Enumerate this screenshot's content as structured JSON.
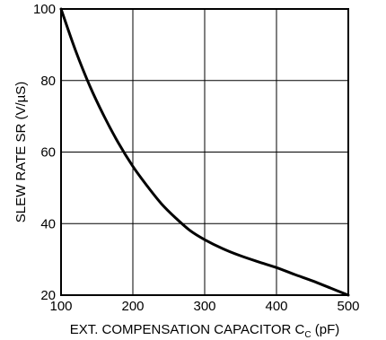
{
  "chart_data": {
    "type": "line",
    "title": "",
    "xlabel": "EXT. COMPENSATION CAPACITOR C",
    "xlabel_subscript": "C",
    "xlabel_unit": " (pF)",
    "ylabel": "SLEW RATE SR (V/µS)",
    "xlim": [
      100,
      500
    ],
    "ylim": [
      20,
      100
    ],
    "x_ticks": [
      100,
      200,
      300,
      400,
      500
    ],
    "y_ticks": [
      20,
      40,
      60,
      80,
      100
    ],
    "grid": true,
    "series": [
      {
        "x": [
          100,
          120,
          140,
          160,
          180,
          200,
          220,
          240,
          260,
          280,
          300,
          325,
          350,
          375,
          400,
          425,
          450,
          475,
          500
        ],
        "y": [
          100,
          88.5,
          78.5,
          70,
          62.5,
          56,
          50.5,
          45.5,
          41.5,
          38,
          35.5,
          33,
          31,
          29.3,
          27.7,
          25.8,
          24,
          22,
          20
        ],
        "color": "#000000"
      }
    ]
  }
}
